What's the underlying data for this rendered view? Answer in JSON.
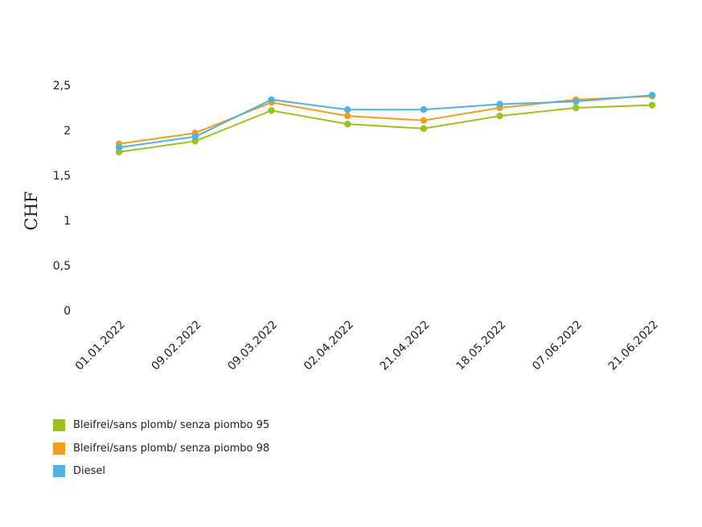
{
  "chart_data": {
    "type": "line",
    "ylabel": "CHF",
    "ylim": [
      0,
      2.5
    ],
    "y_ticks": [
      "0",
      "0,5",
      "1",
      "1,5",
      "2",
      "2,5"
    ],
    "y_tick_values": [
      0,
      0.5,
      1,
      1.5,
      2,
      2.5
    ],
    "categories": [
      "01.01.2022",
      "09.02.2022",
      "09.03.2022",
      "02.04.2022",
      "21.04.2022",
      "18.05.2022",
      "07.06.2022",
      "21.06.2022"
    ],
    "grid": false,
    "legend_position": "bottom-left",
    "series": [
      {
        "name": "Bleifrei/sans plomb/ senza piombo 95",
        "color": "#9bc31c",
        "values": [
          1.76,
          1.88,
          2.22,
          2.07,
          2.02,
          2.16,
          2.25,
          2.28
        ]
      },
      {
        "name": "Bleifrei/sans plomb/ senza piombo 98",
        "color": "#f39c1d",
        "values": [
          1.85,
          1.97,
          2.31,
          2.16,
          2.11,
          2.25,
          2.34,
          2.38
        ]
      },
      {
        "name": "Diesel",
        "color": "#4fb1e0",
        "values": [
          1.81,
          1.93,
          2.34,
          2.23,
          2.23,
          2.29,
          2.32,
          2.39
        ]
      }
    ]
  }
}
